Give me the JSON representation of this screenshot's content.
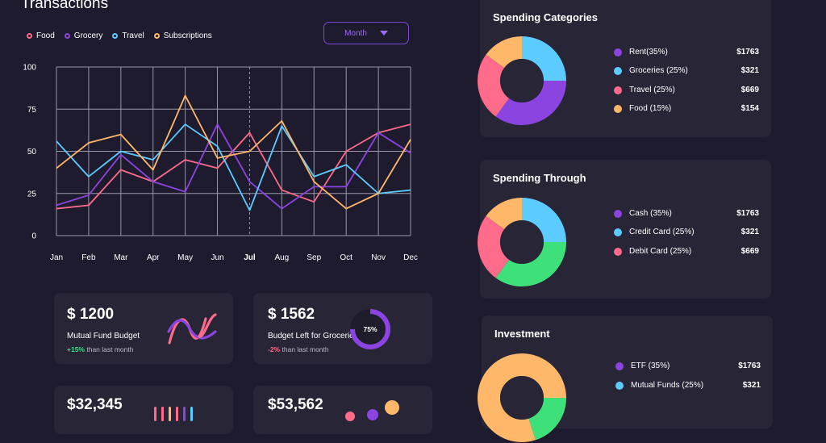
{
  "header": {
    "title": "Transactions",
    "dropdown": {
      "selected": "Month"
    }
  },
  "legend": [
    {
      "label": "Food",
      "color": "#ff6b8a"
    },
    {
      "label": "Grocery",
      "color": "#8c44e0"
    },
    {
      "label": "Travel",
      "color": "#5ccbff"
    },
    {
      "label": "Subscriptions",
      "color": "#ffb86a"
    }
  ],
  "chart_data": {
    "type": "line",
    "categories": [
      "Jan",
      "Feb",
      "Mar",
      "Apr",
      "May",
      "Jun",
      "Jul",
      "Aug",
      "Sep",
      "Oct",
      "Nov",
      "Dec"
    ],
    "highlight_category": "Jul",
    "ylim": [
      0,
      100
    ],
    "yticks": [
      0,
      25,
      50,
      75,
      100
    ],
    "grid": true,
    "series": [
      {
        "name": "Food",
        "color": "#ff6b8a",
        "values": [
          16,
          18,
          39,
          32,
          45,
          40,
          61,
          27,
          20,
          50,
          61,
          66
        ]
      },
      {
        "name": "Grocery",
        "color": "#8c44e0",
        "values": [
          18,
          24,
          48,
          32,
          26,
          66,
          32,
          16,
          29,
          29,
          61,
          49
        ]
      },
      {
        "name": "Travel",
        "color": "#5ccbff",
        "values": [
          56,
          35,
          50,
          45,
          66,
          53,
          15,
          65,
          35,
          42,
          25,
          27
        ]
      },
      {
        "name": "Subscriptions",
        "color": "#ffb86a",
        "values": [
          40,
          55,
          60,
          39,
          83,
          46,
          50,
          68,
          32,
          16,
          25,
          57
        ]
      }
    ]
  },
  "cards": [
    {
      "amount": "$ 1200",
      "label": "Mutual Fund Budget",
      "change": "+15%",
      "change_text": "than last month",
      "trend": "positive"
    },
    {
      "amount": "$ 1562",
      "label": "Budget Left for Groceries",
      "change": "-2%",
      "change_text": "than last month",
      "trend": "negative",
      "gauge": {
        "value": 0.75,
        "text": "75%"
      }
    },
    {
      "amount": "$32,345"
    },
    {
      "amount": "$53,562"
    }
  ],
  "panels": [
    {
      "title": "Spending Categories",
      "items": [
        {
          "label": "Rent(35%)",
          "value": "$1763",
          "color": "#8c44e0",
          "pct": 35
        },
        {
          "label": "Groceries (25%)",
          "value": "$321",
          "color": "#5ccbff",
          "pct": 25
        },
        {
          "label": "Travel (25%)",
          "value": "$669",
          "color": "#ff6b8a",
          "pct": 25
        },
        {
          "label": "Food (15%)",
          "value": "$154",
          "color": "#ffb86a",
          "pct": 15
        }
      ],
      "donut_order": [
        2,
        3,
        0,
        1
      ]
    },
    {
      "title": "Spending Through",
      "items": [
        {
          "label": "Cash (35%)",
          "value": "$1763",
          "color": "#8c44e0",
          "pct": 35
        },
        {
          "label": "Credit Card (25%)",
          "value": "$321",
          "color": "#5ccbff",
          "pct": 25
        },
        {
          "label": "Debit Card (25%)",
          "value": "$669",
          "color": "#ff6b8a",
          "pct": 25
        }
      ]
    },
    {
      "title": "Investment",
      "items": [
        {
          "label": "ETF (35%)",
          "value": "$1763",
          "color": "#8c44e0",
          "pct": 35
        },
        {
          "label": "Mutual Funds  (25%)",
          "value": "$321",
          "color": "#5ccbff",
          "pct": 25
        }
      ]
    }
  ]
}
